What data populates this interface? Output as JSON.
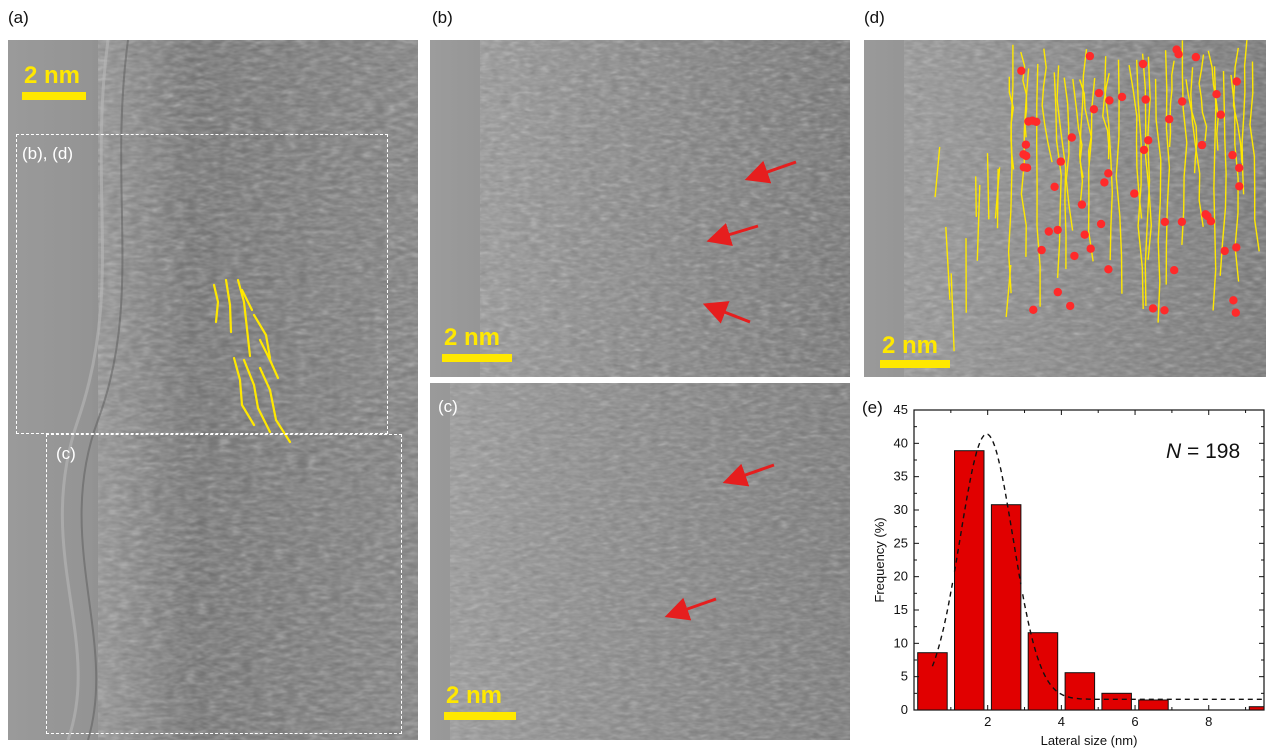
{
  "panels": {
    "a": {
      "letter": "(a)",
      "scale": "2 nm",
      "box_bd": "(b), (d)",
      "box_c": "(c)"
    },
    "b": {
      "letter": "(b)",
      "scale": "2 nm"
    },
    "c": {
      "letter": "(c)",
      "inset": "(c)",
      "scale": "2 nm"
    },
    "d": {
      "letter": "(d)",
      "scale": "2 nm"
    },
    "e": {
      "letter": "(e)"
    }
  },
  "colors": {
    "fringe": "#ffe800",
    "arrow": "#e61e1e",
    "marker": "#ff2a2a",
    "bar": "#e10000"
  },
  "chart_data": {
    "type": "bar",
    "xlabel": "Lateral size (nm)",
    "ylabel": "Frequency (%)",
    "annotation_var": "N",
    "annotation_val": " = 198",
    "xlim": [
      0,
      9.5
    ],
    "ylim": [
      0,
      45
    ],
    "xticks": [
      2,
      4,
      6,
      8
    ],
    "yticks": [
      0,
      5,
      10,
      15,
      20,
      25,
      30,
      35,
      40,
      45
    ],
    "bin_width": 1,
    "bins": [
      0.5,
      1.5,
      2.5,
      3.5,
      4.5,
      5.5,
      6.5,
      7.5,
      8.5,
      9.5
    ],
    "values": [
      8.6,
      38.9,
      30.8,
      11.6,
      5.6,
      2.5,
      1.5,
      0,
      0,
      0.5
    ],
    "fit": {
      "type": "gaussian",
      "baseline": 1.6,
      "amplitude": 39.8,
      "center": 1.97,
      "sigma": 0.72
    }
  }
}
